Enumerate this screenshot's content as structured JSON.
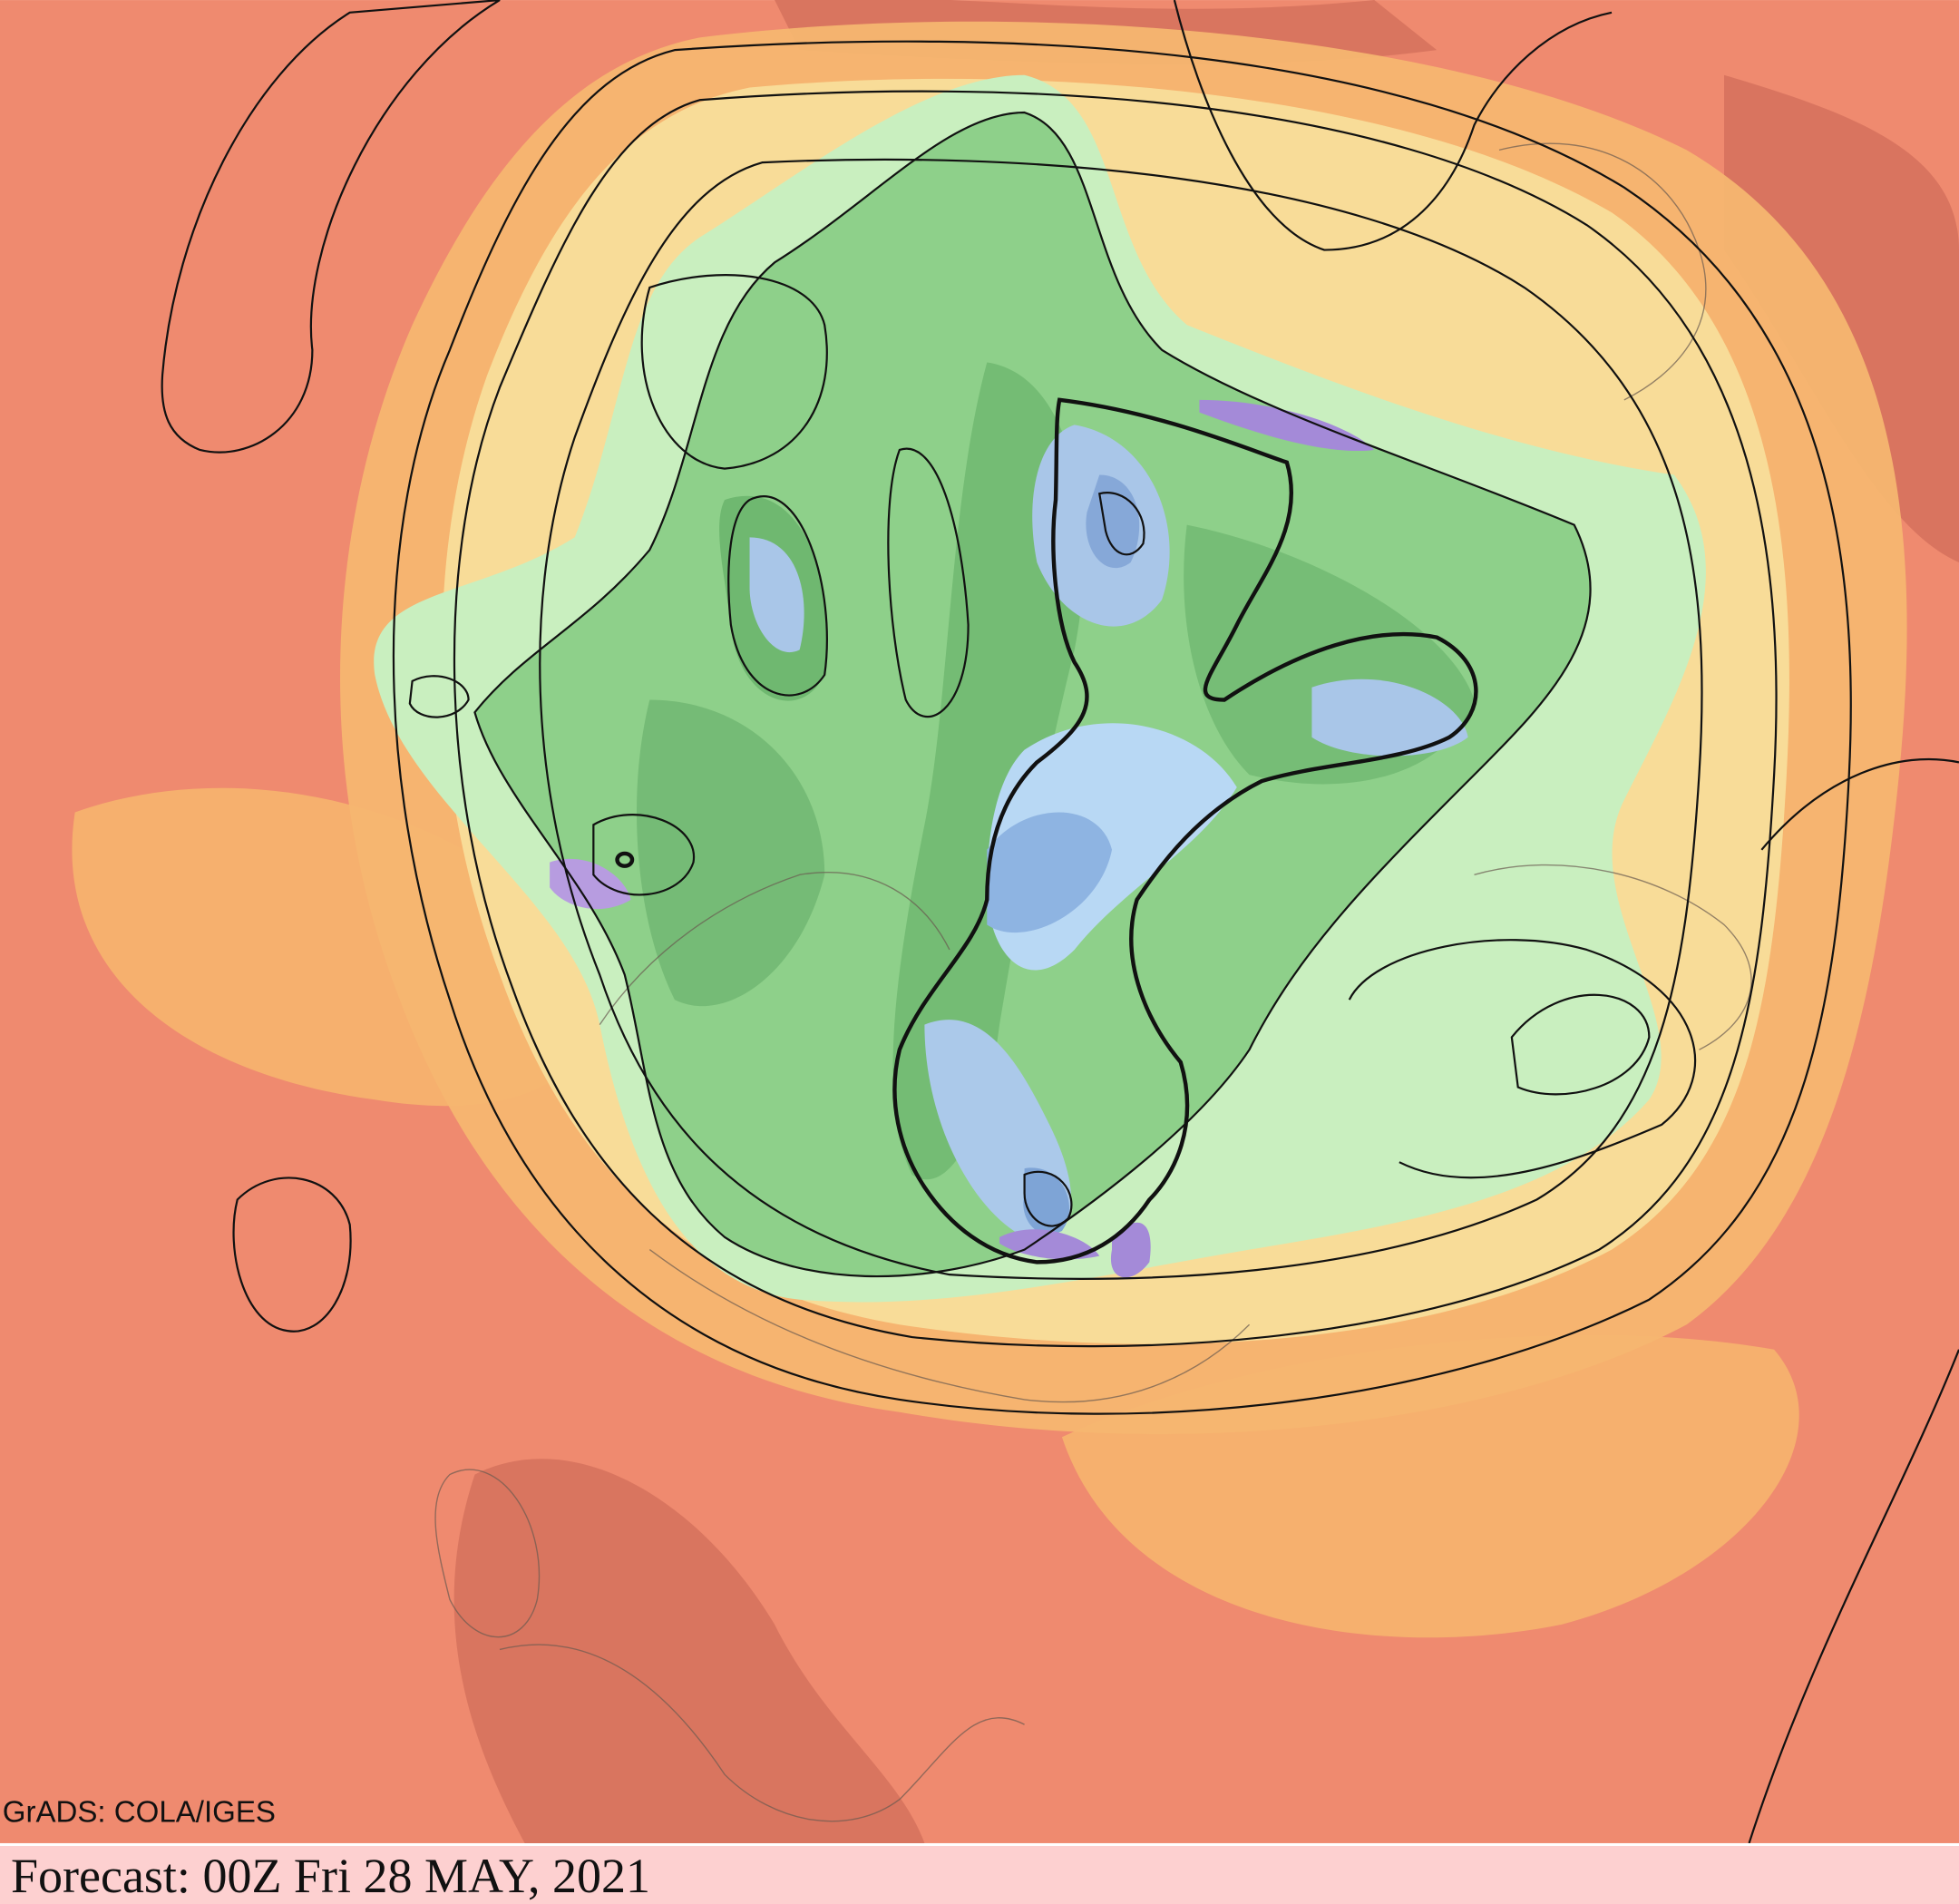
{
  "map": {
    "credit": "GrADS: COLA/IGES",
    "forecast": "Forecast: 00Z Fri 28 MAY, 2021"
  }
}
